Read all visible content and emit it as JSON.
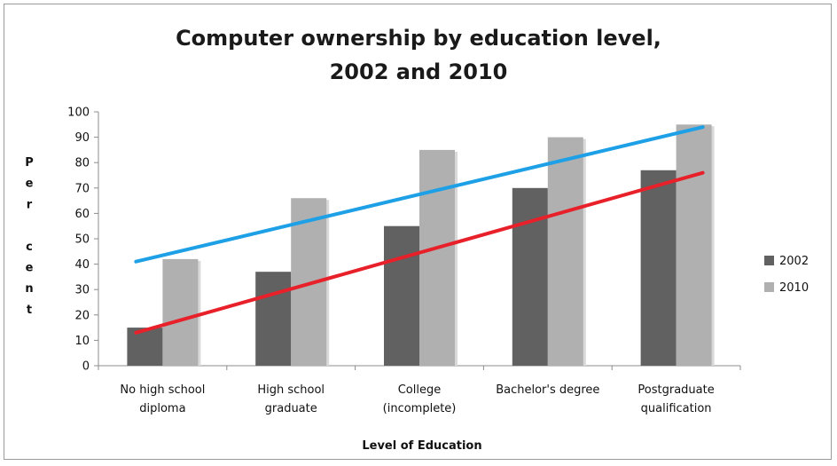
{
  "chart_data": {
    "type": "bar",
    "title_line1": "Computer ownership by education level,",
    "title_line2": "2002 and 2010",
    "xlabel": "Level of Education",
    "ylabel_letters": [
      "P",
      "e",
      "r",
      "",
      "c",
      "e",
      "n",
      "t"
    ],
    "ylim": [
      0,
      100
    ],
    "yticks": [
      0,
      10,
      20,
      30,
      40,
      50,
      60,
      70,
      80,
      90,
      100
    ],
    "categories": [
      [
        "No high school",
        "diploma"
      ],
      [
        "High school",
        "graduate"
      ],
      [
        "College",
        "(incomplete)"
      ],
      [
        "Bachelor's degree"
      ],
      [
        "Postgraduate",
        "qualification"
      ]
    ],
    "series": [
      {
        "name": "2002",
        "values": [
          15,
          37,
          55,
          70,
          77
        ],
        "color": "#616161"
      },
      {
        "name": "2010",
        "values": [
          42,
          66,
          85,
          90,
          95
        ],
        "color": "#b0b0b0"
      }
    ],
    "trend_lines": [
      {
        "series": "2010",
        "color": "#1ea0e6",
        "from": {
          "category": 0,
          "y": 41
        },
        "to": {
          "category": 4,
          "y": 94
        }
      },
      {
        "series": "2002",
        "color": "#e8202a",
        "from": {
          "category": 0,
          "y": 13
        },
        "to": {
          "category": 4,
          "y": 76
        }
      }
    ],
    "legend": "right",
    "grid": false
  }
}
